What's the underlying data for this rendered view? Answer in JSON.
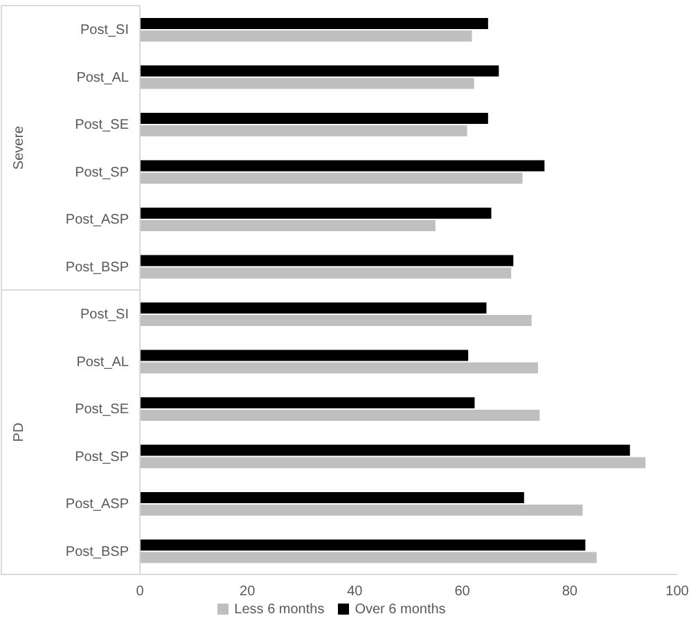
{
  "chart_data": {
    "type": "bar",
    "orientation": "horizontal",
    "categories": [
      "Post_SI",
      "Post_AL",
      "Post_SE",
      "Post_SP",
      "Post_ASP",
      "Post_BSP",
      "Post_SI",
      "Post_AL",
      "Post_SE",
      "Post_SP",
      "Post_ASP",
      "Post_BSP"
    ],
    "series": [
      {
        "name": "Over 6 months",
        "color": "#000000",
        "values": [
          64.8,
          66.8,
          64.8,
          75.3,
          65.4,
          69.5,
          64.5,
          61.1,
          62.3,
          91.2,
          71.5,
          82.9
        ]
      },
      {
        "name": "Less 6 months",
        "color": "#bfbfbf",
        "values": [
          61.8,
          62.2,
          60.9,
          71.2,
          55.0,
          69.1,
          72.9,
          74.1,
          74.4,
          94.1,
          82.4,
          85.0
        ]
      }
    ],
    "xlim": [
      0,
      100
    ],
    "xticks": [
      0,
      20,
      40,
      60,
      80,
      100
    ],
    "annotations": [
      "Severe",
      "PD"
    ],
    "legend": "bottom",
    "grid": false
  }
}
